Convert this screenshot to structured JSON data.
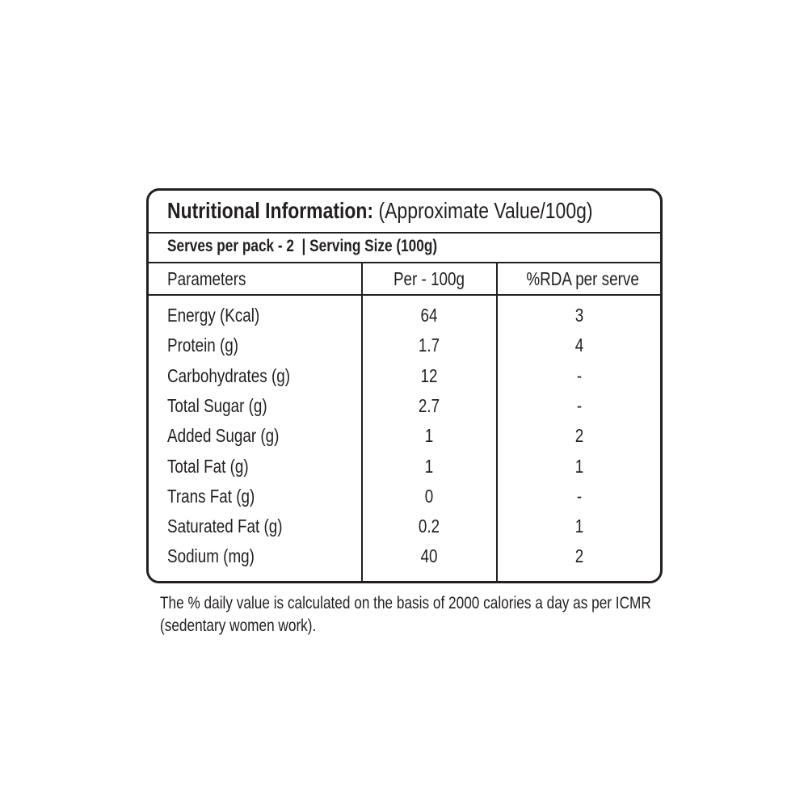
{
  "title": {
    "bold": "Nutritional Information:",
    "rest": "(Approximate Value/100g)"
  },
  "serving": {
    "serves": "Serves per pack - 2",
    "size": "Serving Size (100g)"
  },
  "table": {
    "header": [
      "Parameters",
      "Per - 100g",
      "%RDA per serve"
    ],
    "rows": [
      [
        "Energy (Kcal)",
        "64",
        "3"
      ],
      [
        "Protein (g)",
        "1.7",
        "4"
      ],
      [
        "Carbohydrates (g)",
        "12",
        "-"
      ],
      [
        "Total Sugar (g)",
        "2.7",
        "-"
      ],
      [
        "Added Sugar (g)",
        "1",
        "2"
      ],
      [
        "Total Fat (g)",
        "1",
        "1"
      ],
      [
        "Trans Fat (g)",
        "0",
        "-"
      ],
      [
        "Saturated Fat (g)",
        "0.2",
        "1"
      ],
      [
        "Sodium (mg)",
        "40",
        "2"
      ]
    ]
  },
  "footnote": "The % daily value is calculated on the basis of 2000 calories a day as per ICMR (sedentary women work)."
}
